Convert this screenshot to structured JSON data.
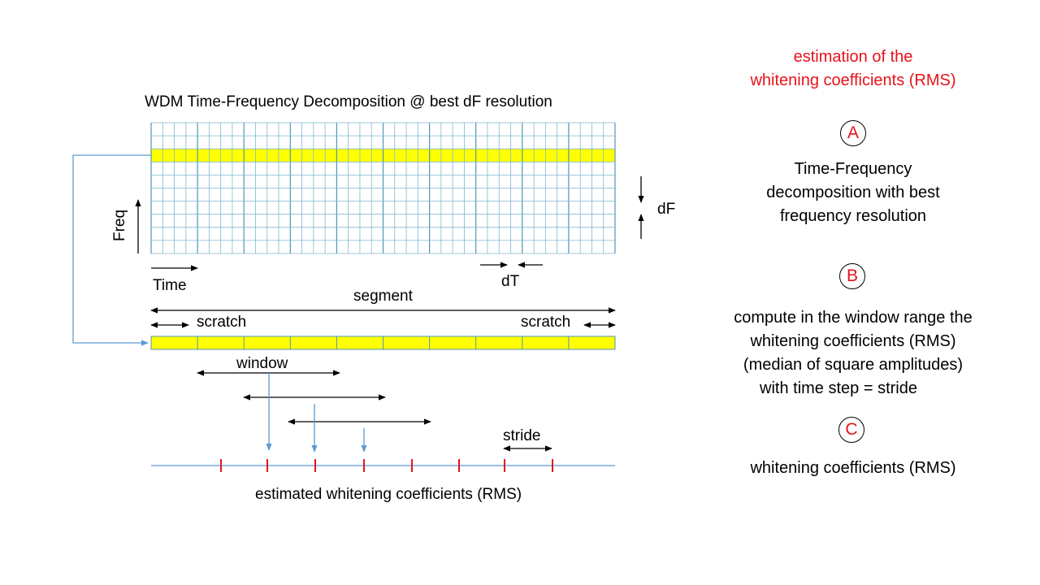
{
  "title": "WDM Time-Frequency Decomposition @ best dF resolution",
  "labels": {
    "freq": "Freq",
    "time": "Time",
    "dF": "dF",
    "dT": "dT",
    "segment": "segment",
    "scratch_left": "scratch",
    "scratch_right": "scratch",
    "window": "window",
    "stride": "stride",
    "estimated": "estimated whitening coefficients (RMS)"
  },
  "right_panel": {
    "heading_line1": "estimation of the",
    "heading_line2": "whitening coefficients (RMS)",
    "step_a": {
      "letter": "A",
      "lines": [
        "Time-Frequency",
        "decomposition with best",
        "frequency resolution"
      ]
    },
    "step_b": {
      "letter": "B",
      "lines": [
        "compute in the window range the",
        "whitening coefficients (RMS)",
        "(median of square amplitudes)",
        "with time step = stride"
      ]
    },
    "step_c": {
      "letter": "C",
      "lines": [
        "whitening coefficients (RMS)"
      ]
    }
  },
  "colors": {
    "grid_line": "#7fb9cf",
    "grid_major": "#4f96b8",
    "highlight": "#ffff00",
    "tick": "#e8121a",
    "connector": "#5b9bd5",
    "accent": "#e8121a"
  }
}
